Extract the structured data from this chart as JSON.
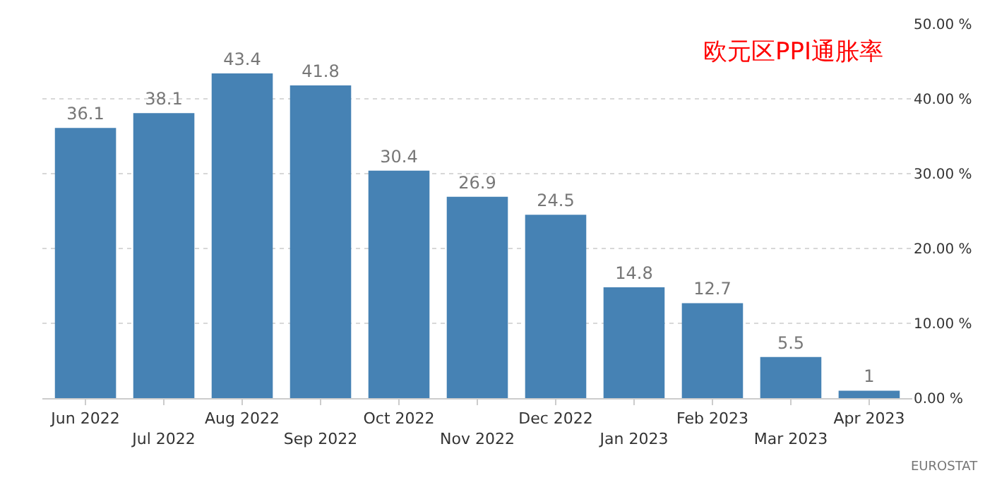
{
  "chart_data": {
    "type": "bar",
    "title": "欧元区PPI通胀率",
    "categories": [
      "Jun 2022",
      "Jul 2022",
      "Aug 2022",
      "Sep 2022",
      "Oct 2022",
      "Nov 2022",
      "Dec 2022",
      "Jan 2023",
      "Feb 2023",
      "Mar 2023",
      "Apr 2023"
    ],
    "values": [
      36.1,
      38.1,
      43.4,
      41.8,
      30.4,
      26.9,
      24.5,
      14.8,
      12.7,
      5.5,
      1
    ],
    "color": "#4682b4",
    "data_labels": true,
    "ylim": [
      0,
      50
    ],
    "yticks": [
      {
        "value": 0,
        "label": "0.00 %"
      },
      {
        "value": 10,
        "label": "10.00 %"
      },
      {
        "value": 20,
        "label": "20.00 %"
      },
      {
        "value": 30,
        "label": "30.00 %"
      },
      {
        "value": 40,
        "label": "40.00 %"
      },
      {
        "value": 50,
        "label": "50.00 %"
      }
    ],
    "grid": "y",
    "annotations": [
      "EUROSTAT"
    ]
  }
}
